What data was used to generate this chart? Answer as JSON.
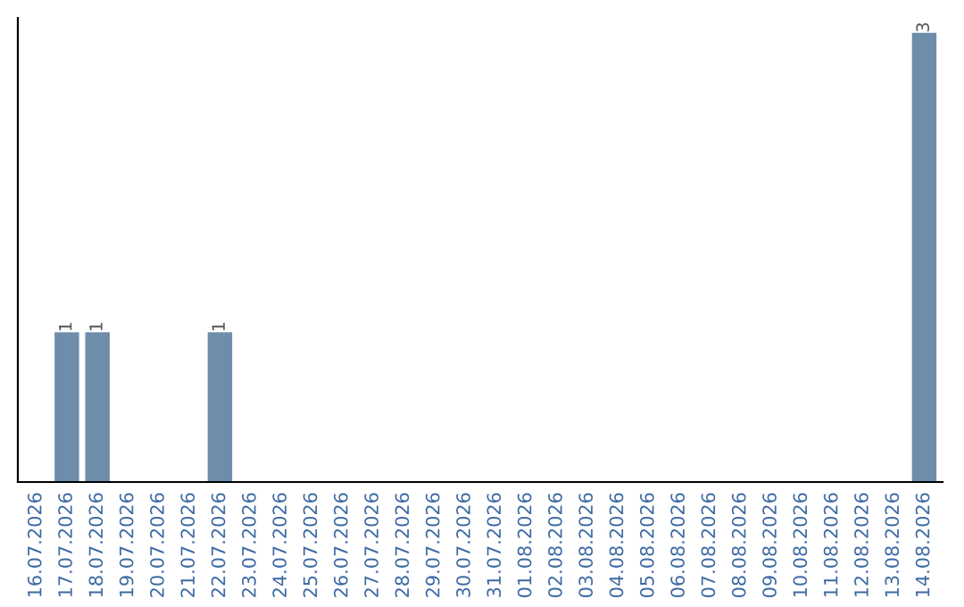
{
  "chart_data": {
    "type": "bar",
    "categories": [
      "16.07.2026",
      "17.07.2026",
      "18.07.2026",
      "19.07.2026",
      "20.07.2026",
      "21.07.2026",
      "22.07.2026",
      "23.07.2026",
      "24.07.2026",
      "25.07.2026",
      "26.07.2026",
      "27.07.2026",
      "28.07.2026",
      "29.07.2026",
      "30.07.2026",
      "31.07.2026",
      "01.08.2026",
      "02.08.2026",
      "03.08.2026",
      "04.08.2026",
      "05.08.2026",
      "06.08.2026",
      "07.08.2026",
      "08.08.2026",
      "09.08.2026",
      "10.08.2026",
      "11.08.2026",
      "12.08.2026",
      "13.08.2026",
      "14.08.2026"
    ],
    "values": [
      0,
      1,
      1,
      0,
      0,
      0,
      1,
      0,
      0,
      0,
      0,
      0,
      0,
      0,
      0,
      0,
      0,
      0,
      0,
      0,
      0,
      0,
      0,
      0,
      0,
      0,
      0,
      0,
      0,
      3
    ],
    "value_labels": [
      null,
      "1",
      "1",
      null,
      null,
      null,
      "1",
      null,
      null,
      null,
      null,
      null,
      null,
      null,
      null,
      null,
      null,
      null,
      null,
      null,
      null,
      null,
      null,
      null,
      null,
      null,
      null,
      null,
      null,
      "3"
    ],
    "color": "#6e8dab",
    "ylim": [
      0,
      3.1
    ],
    "tick_labels": "x",
    "grid": false,
    "legend": false
  }
}
